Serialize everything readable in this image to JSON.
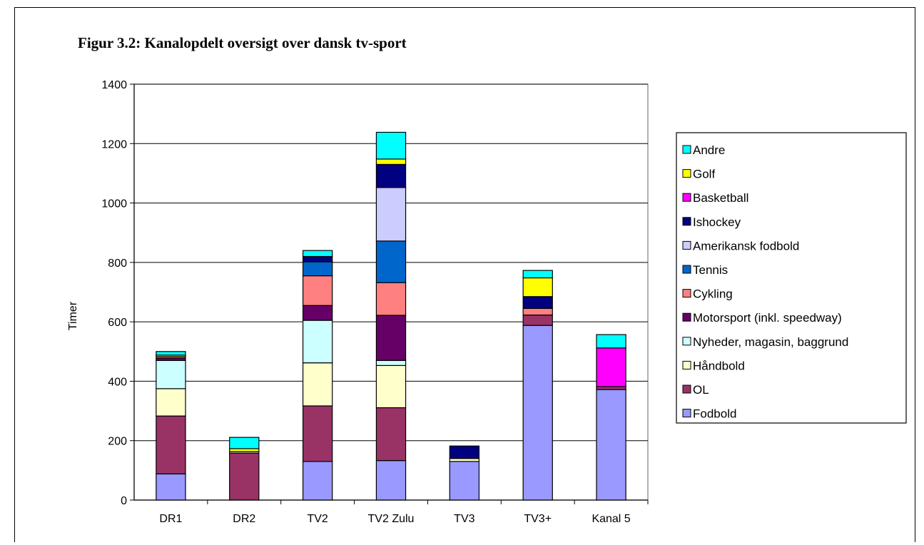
{
  "chart_data": {
    "type": "bar",
    "stacked": true,
    "title": "Figur 3.2: Kanalopdelt oversigt over dansk tv-sport",
    "xlabel": "",
    "ylabel": "Timer",
    "ylim": [
      0,
      1400
    ],
    "yticks": [
      0,
      200,
      400,
      600,
      800,
      1000,
      1200,
      1400
    ],
    "grid": true,
    "legend_position": "right",
    "categories": [
      "DR1",
      "DR2",
      "TV2",
      "TV2 Zulu",
      "TV3",
      "TV3+",
      "Kanal 5"
    ],
    "series": [
      {
        "name": "Fodbold",
        "color": "#9999ff",
        "values": [
          88,
          0,
          130,
          133,
          130,
          588,
          372
        ]
      },
      {
        "name": "OL",
        "color": "#993366",
        "values": [
          195,
          158,
          187,
          178,
          0,
          35,
          10
        ]
      },
      {
        "name": "Håndbold",
        "color": "#ffffcc",
        "values": [
          92,
          5,
          145,
          142,
          10,
          0,
          0
        ]
      },
      {
        "name": "Nyheder, magasin, baggrund",
        "color": "#ccffff",
        "values": [
          95,
          0,
          143,
          17,
          0,
          0,
          0
        ]
      },
      {
        "name": "Motorsport (inkl. speedway)",
        "color": "#660066",
        "values": [
          8,
          0,
          50,
          152,
          0,
          0,
          0
        ]
      },
      {
        "name": "Cykling",
        "color": "#ff8080",
        "values": [
          5,
          0,
          100,
          110,
          0,
          22,
          0
        ]
      },
      {
        "name": "Tennis",
        "color": "#0066cc",
        "values": [
          0,
          0,
          47,
          140,
          0,
          0,
          0
        ]
      },
      {
        "name": "Amerikansk fodbold",
        "color": "#ccccff",
        "values": [
          0,
          0,
          0,
          180,
          0,
          0,
          0
        ]
      },
      {
        "name": "Ishockey",
        "color": "#000080",
        "values": [
          0,
          0,
          18,
          78,
          42,
          40,
          0
        ]
      },
      {
        "name": "Basketball",
        "color": "#ff00ff",
        "values": [
          0,
          0,
          0,
          0,
          0,
          0,
          130
        ]
      },
      {
        "name": "Golf",
        "color": "#ffff00",
        "values": [
          5,
          10,
          0,
          18,
          0,
          63,
          0
        ]
      },
      {
        "name": "Andre",
        "color": "#00ffff",
        "values": [
          12,
          38,
          20,
          90,
          0,
          25,
          45
        ]
      }
    ]
  }
}
